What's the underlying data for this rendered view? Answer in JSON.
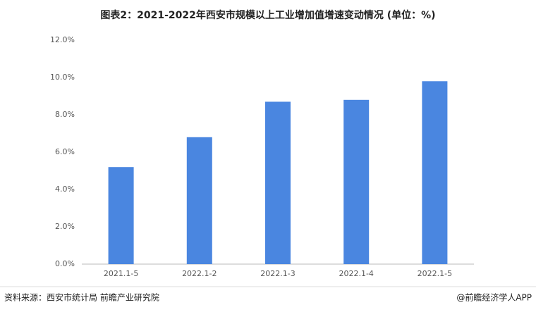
{
  "chart_data": {
    "type": "bar",
    "title": "图表2：2021-2022年西安市规模以上工业增加值增速变动情况 (单位：%)",
    "categories": [
      "2021.1-5",
      "2022.1-2",
      "2022.1-3",
      "2022.1-4",
      "2022.1-5"
    ],
    "values": [
      5.2,
      6.8,
      8.7,
      8.8,
      9.8
    ],
    "color": "#4a86e0",
    "ylim": [
      0,
      12
    ],
    "yticks": [
      {
        "value": 0,
        "label": "0.0%"
      },
      {
        "value": 2,
        "label": "2.0%"
      },
      {
        "value": 4,
        "label": "4.0%"
      },
      {
        "value": 6,
        "label": "6.0%"
      },
      {
        "value": 8,
        "label": "8.0%"
      },
      {
        "value": 10,
        "label": "10.0%"
      },
      {
        "value": 12,
        "label": "12.0%"
      }
    ],
    "grid": false,
    "source": "资料来源：西安市统计局 前瞻产业研究院",
    "credit": "@前瞻经济学人APP"
  }
}
